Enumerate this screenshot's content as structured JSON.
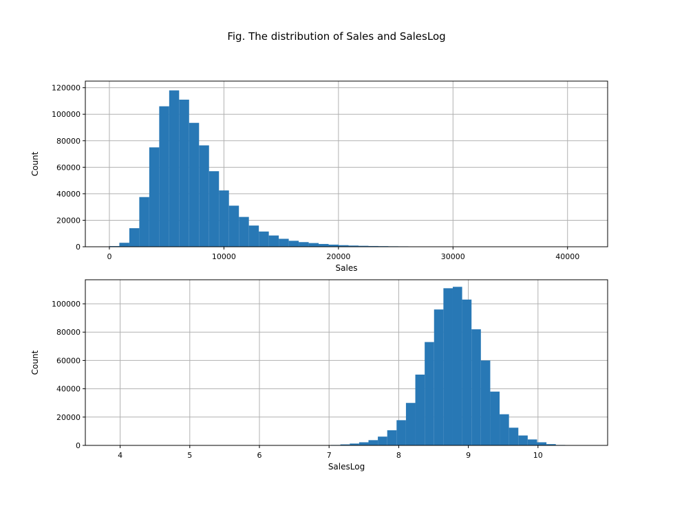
{
  "figure": {
    "title": "Fig. The distribution of Sales and SalesLog"
  },
  "colors": {
    "bar": "#2878b5",
    "grid": "#b0b0b0",
    "axis": "#000000"
  },
  "chart_data": [
    {
      "type": "bar",
      "title": "",
      "xlabel": "Sales",
      "ylabel": "Count",
      "grid": true,
      "xlim": [
        -2100,
        43500
      ],
      "ylim": [
        0,
        125000
      ],
      "xticks": [
        0,
        10000,
        20000,
        30000,
        40000
      ],
      "xtick_labels": [
        "0",
        "10000",
        "20000",
        "30000",
        "40000"
      ],
      "yticks": [
        0,
        20000,
        40000,
        60000,
        80000,
        100000,
        120000
      ],
      "ytick_labels": [
        "0",
        "20000",
        "40000",
        "60000",
        "80000",
        "100000",
        "120000"
      ],
      "bin_width": 870,
      "bin_starts": [
        0,
        870,
        1740,
        2610,
        3480,
        4350,
        5220,
        6090,
        6960,
        7830,
        8700,
        9570,
        10440,
        11310,
        12180,
        13050,
        13920,
        14790,
        15660,
        16530,
        17400,
        18270,
        19140,
        20010,
        20880,
        21750,
        22620,
        23490,
        24360,
        25230,
        26100,
        26970,
        27840
      ],
      "values": [
        500,
        3000,
        14000,
        37500,
        75000,
        106000,
        118000,
        111000,
        93500,
        76500,
        57000,
        42500,
        31000,
        22500,
        16000,
        11500,
        8500,
        6000,
        4500,
        3500,
        2800,
        2100,
        1600,
        1200,
        900,
        700,
        550,
        450,
        350,
        300,
        250,
        200,
        150
      ]
    },
    {
      "type": "bar",
      "title": "",
      "xlabel": "SalesLog",
      "ylabel": "Count",
      "grid": true,
      "xlim": [
        3.5,
        11.0
      ],
      "ylim": [
        0,
        117000
      ],
      "xticks": [
        4,
        5,
        6,
        7,
        8,
        9,
        10
      ],
      "xtick_labels": [
        "4",
        "5",
        "6",
        "7",
        "8",
        "9",
        "10"
      ],
      "yticks": [
        0,
        20000,
        40000,
        60000,
        80000,
        100000
      ],
      "ytick_labels": [
        "0",
        "20000",
        "40000",
        "60000",
        "80000",
        "100000"
      ],
      "bin_width": 0.1345,
      "bin_starts": [
        3.8,
        3.9345,
        4.069,
        4.2035,
        4.338,
        4.4725,
        4.607,
        4.7415,
        4.876,
        5.0105,
        5.145,
        5.2795,
        5.414,
        5.5485,
        5.683,
        5.8175,
        5.952,
        6.0865,
        6.221,
        6.3555,
        6.49,
        6.6245,
        6.759,
        6.8935,
        7.028,
        7.1625,
        7.297,
        7.4315,
        7.566,
        7.7005,
        7.835,
        7.9695,
        8.104,
        8.2385,
        8.373,
        8.5075,
        8.642,
        8.7765,
        8.911,
        9.0455,
        9.18,
        9.3145,
        9.449,
        9.5835,
        9.718,
        9.8525,
        9.987,
        10.1215,
        10.256
      ],
      "values": [
        0,
        0,
        0,
        0,
        0,
        0,
        0,
        0,
        0,
        0,
        0,
        0,
        0,
        0,
        0,
        0,
        0,
        0,
        0,
        0,
        0,
        0,
        0,
        0,
        300,
        700,
        1300,
        2200,
        3700,
        6200,
        10700,
        17800,
        30000,
        50000,
        73000,
        96000,
        111000,
        112000,
        103000,
        82000,
        60000,
        38000,
        22000,
        12500,
        7000,
        4200,
        2200,
        900,
        300
      ]
    }
  ]
}
